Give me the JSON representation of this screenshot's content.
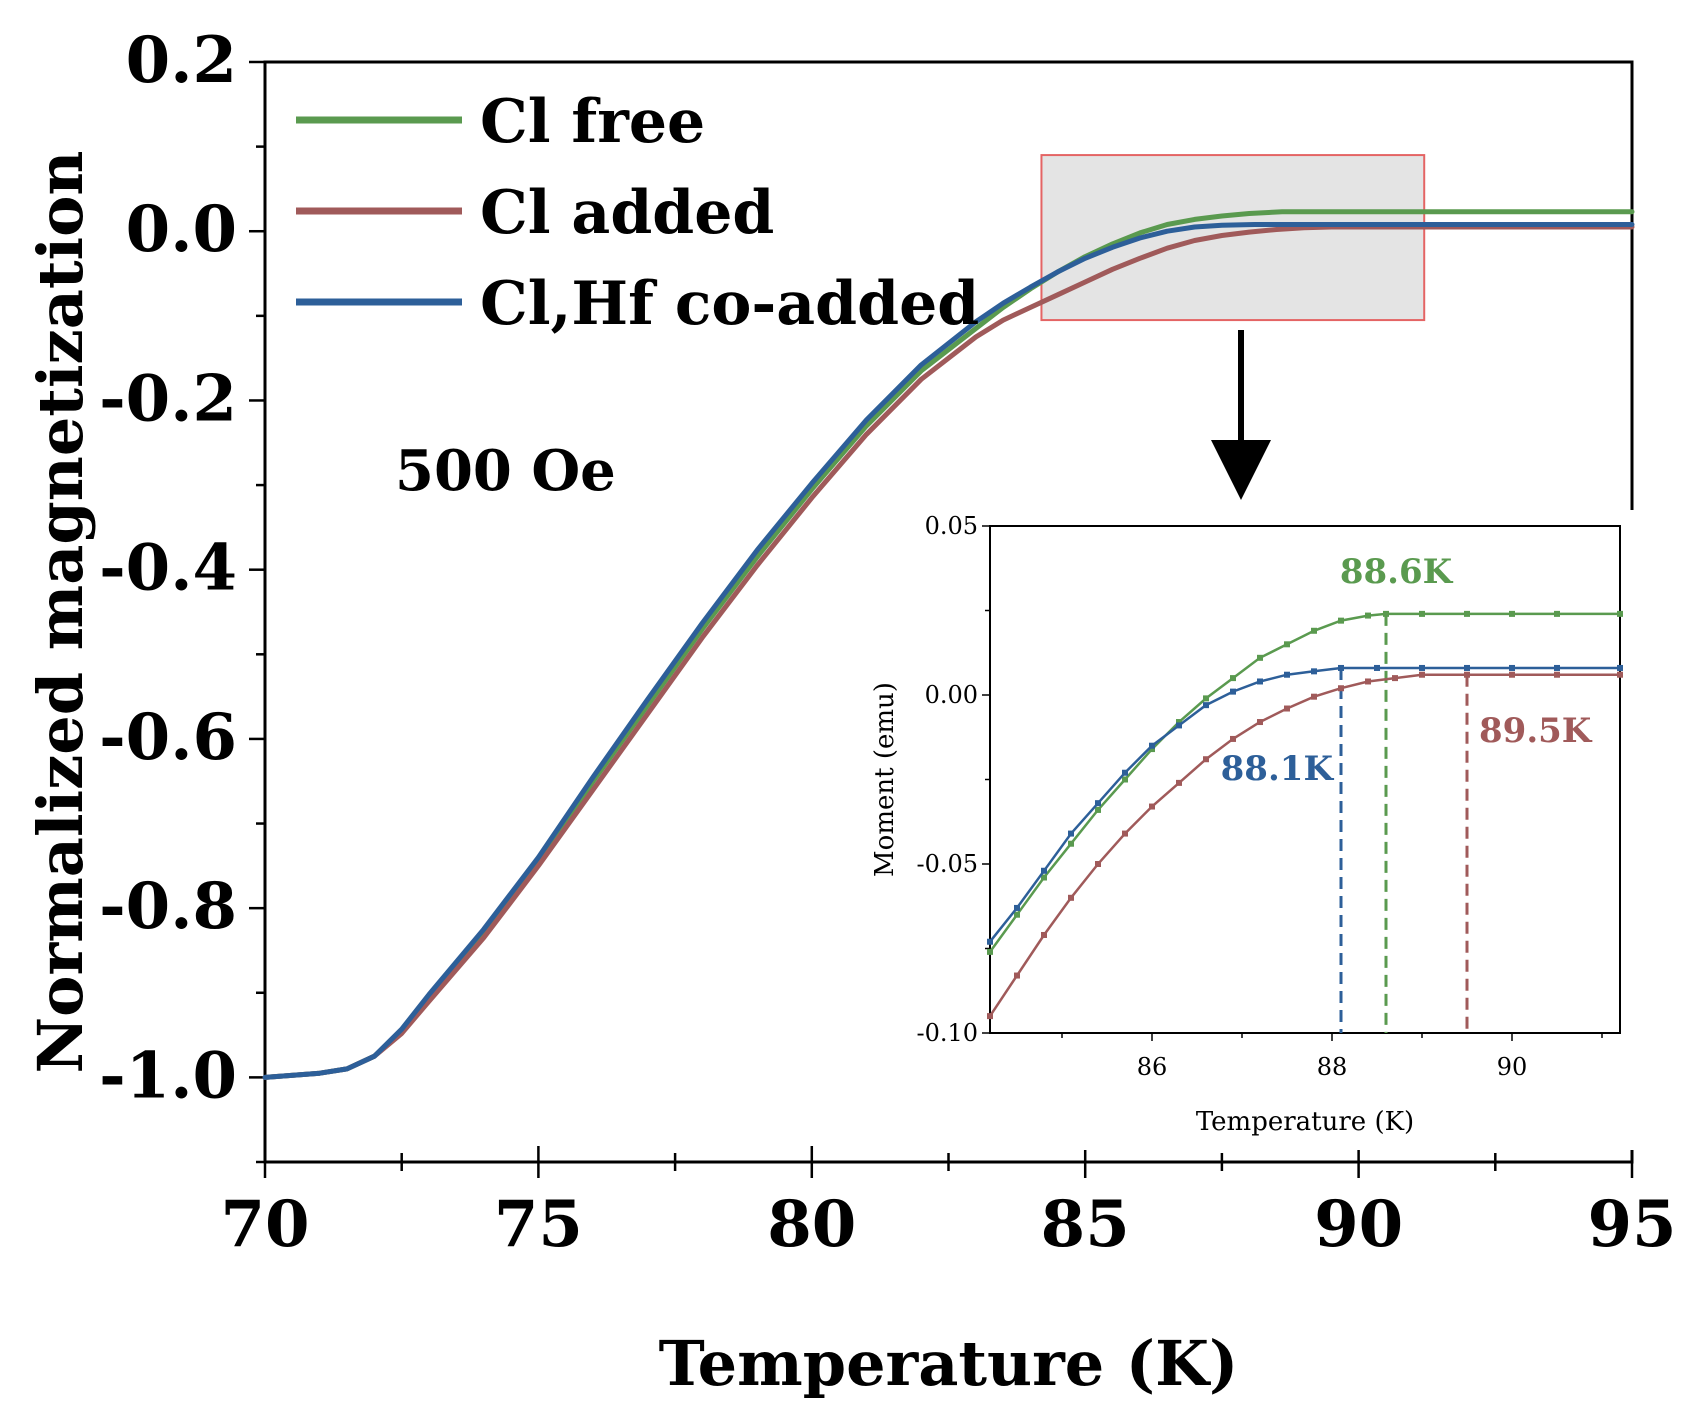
{
  "chart_data": [
    {
      "type": "line",
      "title": "",
      "xlabel": "Temperature (K)",
      "ylabel": "Normalized magnetization",
      "xlim": [
        70,
        95
      ],
      "ylim": [
        -1.1,
        0.2
      ],
      "xticks": [
        70,
        75,
        80,
        85,
        90,
        95
      ],
      "yticks": [
        0.2,
        0.0,
        -0.2,
        -0.4,
        -0.6,
        -0.8,
        -1.0
      ],
      "annotation": "500 Oe",
      "legend_position": "top-left",
      "series": [
        {
          "name": "Cl free",
          "color": "#5a9a4f",
          "x": [
            70,
            71,
            71.5,
            72,
            72.5,
            73,
            74,
            75,
            76,
            77,
            78,
            79,
            80,
            81,
            82,
            83,
            83.5,
            84,
            84.5,
            85,
            85.5,
            86,
            86.5,
            87,
            87.5,
            88,
            88.6,
            89,
            90,
            92,
            95
          ],
          "y": [
            -1.0,
            -0.995,
            -0.99,
            -0.975,
            -0.945,
            -0.905,
            -0.83,
            -0.745,
            -0.65,
            -0.56,
            -0.47,
            -0.385,
            -0.305,
            -0.23,
            -0.165,
            -0.115,
            -0.09,
            -0.068,
            -0.048,
            -0.03,
            -0.015,
            -0.002,
            0.008,
            0.014,
            0.018,
            0.021,
            0.023,
            0.023,
            0.023,
            0.023,
            0.023
          ]
        },
        {
          "name": "Cl added",
          "color": "#a05a5a",
          "x": [
            70,
            71,
            71.5,
            72,
            72.5,
            73,
            74,
            75,
            76,
            77,
            78,
            79,
            80,
            81,
            82,
            83,
            83.5,
            84,
            84.5,
            85,
            85.5,
            86,
            86.5,
            87,
            87.5,
            88,
            88.5,
            89,
            89.5,
            90,
            92,
            95
          ],
          "y": [
            -1.0,
            -0.995,
            -0.99,
            -0.975,
            -0.948,
            -0.91,
            -0.835,
            -0.75,
            -0.66,
            -0.57,
            -0.48,
            -0.395,
            -0.315,
            -0.24,
            -0.175,
            -0.125,
            -0.105,
            -0.09,
            -0.075,
            -0.06,
            -0.045,
            -0.032,
            -0.02,
            -0.011,
            -0.005,
            -0.001,
            0.002,
            0.004,
            0.005,
            0.005,
            0.005,
            0.005
          ]
        },
        {
          "name": "Cl,Hf co-added",
          "color": "#2d5f99",
          "x": [
            70,
            71,
            71.5,
            72,
            72.5,
            73,
            74,
            75,
            76,
            77,
            78,
            79,
            80,
            81,
            82,
            83,
            83.5,
            84,
            84.5,
            85,
            85.5,
            86,
            86.5,
            87,
            87.5,
            88.1,
            89,
            90,
            92,
            95
          ],
          "y": [
            -1.0,
            -0.995,
            -0.99,
            -0.975,
            -0.943,
            -0.902,
            -0.825,
            -0.74,
            -0.645,
            -0.553,
            -0.463,
            -0.377,
            -0.298,
            -0.223,
            -0.158,
            -0.107,
            -0.085,
            -0.066,
            -0.048,
            -0.032,
            -0.019,
            -0.008,
            0.0,
            0.005,
            0.007,
            0.008,
            0.008,
            0.008,
            0.008,
            0.008
          ]
        }
      ],
      "highlight_box": {
        "xlim": [
          84.2,
          91.2
        ],
        "ylim": [
          -0.105,
          0.09
        ]
      }
    },
    {
      "type": "line",
      "title": "",
      "xlabel": "Temperature (K)",
      "ylabel": "Moment (emu)",
      "xlim": [
        84.2,
        91.2
      ],
      "ylim": [
        -0.1,
        0.05
      ],
      "xticks": [
        86,
        88,
        90
      ],
      "yticks": [
        0.05,
        0.0,
        -0.05,
        -0.1
      ],
      "ytick_labels": [
        "0.05",
        "0.00",
        "-0.05",
        "-0.10"
      ],
      "series": [
        {
          "name": "Cl free",
          "color": "#5a9a4f",
          "x": [
            84.2,
            84.5,
            84.8,
            85.1,
            85.4,
            85.7,
            86.0,
            86.3,
            86.6,
            86.9,
            87.2,
            87.5,
            87.8,
            88.1,
            88.4,
            88.6,
            89.0,
            89.5,
            90.0,
            90.5,
            91.2
          ],
          "y": [
            -0.076,
            -0.065,
            -0.054,
            -0.044,
            -0.034,
            -0.025,
            -0.016,
            -0.008,
            -0.001,
            0.005,
            0.011,
            0.015,
            0.019,
            0.022,
            0.0235,
            0.024,
            0.024,
            0.024,
            0.024,
            0.024,
            0.024
          ]
        },
        {
          "name": "Cl added",
          "color": "#a05a5a",
          "x": [
            84.2,
            84.5,
            84.8,
            85.1,
            85.4,
            85.7,
            86.0,
            86.3,
            86.6,
            86.9,
            87.2,
            87.5,
            87.8,
            88.1,
            88.4,
            88.7,
            89.0,
            89.5,
            90.0,
            90.5,
            91.2
          ],
          "y": [
            -0.095,
            -0.083,
            -0.071,
            -0.06,
            -0.05,
            -0.041,
            -0.033,
            -0.026,
            -0.019,
            -0.013,
            -0.008,
            -0.004,
            -0.0005,
            0.002,
            0.004,
            0.005,
            0.006,
            0.006,
            0.006,
            0.006,
            0.006
          ]
        },
        {
          "name": "Cl,Hf co-added",
          "color": "#2d5f99",
          "x": [
            84.2,
            84.5,
            84.8,
            85.1,
            85.4,
            85.7,
            86.0,
            86.3,
            86.6,
            86.9,
            87.2,
            87.5,
            87.8,
            88.1,
            88.5,
            89.0,
            89.5,
            90.0,
            90.5,
            91.2
          ],
          "y": [
            -0.073,
            -0.063,
            -0.052,
            -0.041,
            -0.032,
            -0.023,
            -0.015,
            -0.009,
            -0.003,
            0.001,
            0.004,
            0.006,
            0.007,
            0.008,
            0.008,
            0.008,
            0.008,
            0.008,
            0.008,
            0.008
          ]
        }
      ],
      "markers": [
        {
          "label": "88.6K",
          "x": 88.6,
          "color": "#5a9a4f"
        },
        {
          "label": "88.1K",
          "x": 88.1,
          "color": "#2d5f99"
        },
        {
          "label": "89.5K",
          "x": 89.5,
          "color": "#a05a5a"
        }
      ]
    }
  ]
}
